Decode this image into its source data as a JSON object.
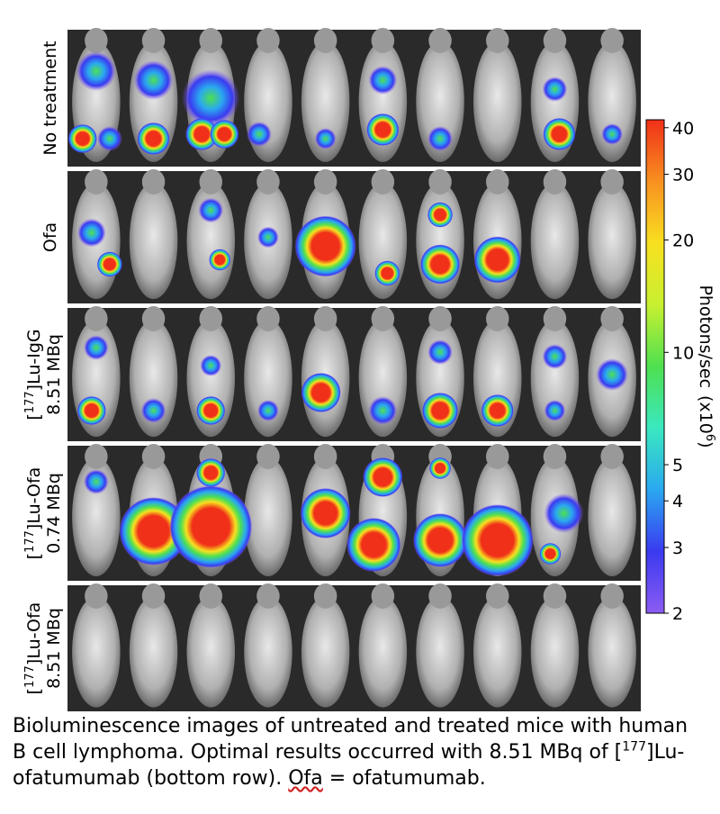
{
  "rows": [
    {
      "line1": {
        "pre": "No treatment"
      }
    },
    {
      "line1": {
        "pre": "Ofa"
      }
    },
    {
      "line1": {
        "pre": "[",
        "sup": "177",
        "post": "]Lu-IgG"
      },
      "line2": "8.51 MBq"
    },
    {
      "line1": {
        "pre": "[",
        "sup": "177",
        "post": "]Lu-Ofa"
      },
      "line2": "0.74 MBq"
    },
    {
      "line1": {
        "pre": "[",
        "sup": "177",
        "post": "]Lu-Ofa"
      },
      "line2": "8.51 MBq"
    }
  ],
  "colorbar": {
    "label": "Photons/sec",
    "unit_pre": "(x10",
    "unit_sup": "6",
    "unit_post": ")",
    "lim": [
      2,
      42
    ],
    "ticks": [
      2,
      3,
      4,
      5,
      10,
      20,
      30,
      40
    ],
    "log": true,
    "colors": [
      "#8c5cf2",
      "#3a3af0",
      "#2aa8f0",
      "#3ae8c0",
      "#4ee050",
      "#c8f030",
      "#f8e020",
      "#f89020",
      "#f03018"
    ]
  },
  "caption": {
    "part1": "Bioluminescence images of untreated and treated mice with human B cell lymphoma. Optimal results occurred with 8.51 MBq of [",
    "sup": "177",
    "part2": "]Lu-ofatumumab (bottom row). ",
    "ofa": "Ofa",
    "part3": " = ofatumumab."
  }
}
